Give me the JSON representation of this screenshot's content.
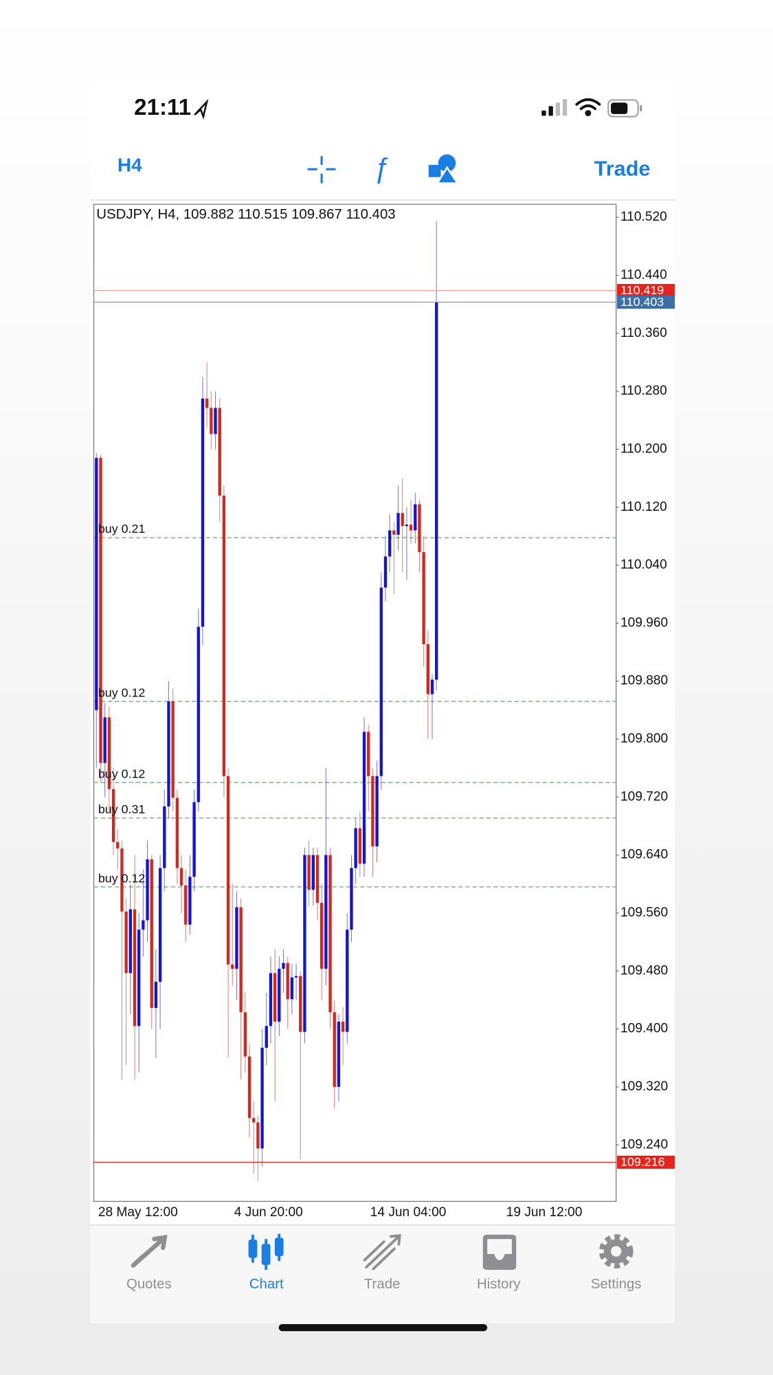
{
  "status_bar": {
    "time": "21:11"
  },
  "toolbar": {
    "timeframe": "H4",
    "trade_button": "Trade"
  },
  "chart_data": {
    "type": "candlestick",
    "title": "USDJPY, H4, 109.882 110.515 109.867 110.403",
    "ylim": [
      109.162,
      110.538
    ],
    "yticks": [
      {
        "value": 110.52,
        "label": "110.520"
      },
      {
        "value": 110.44,
        "label": "110.440"
      },
      {
        "value": 110.36,
        "label": "110.360"
      },
      {
        "value": 110.28,
        "label": "110.280"
      },
      {
        "value": 110.2,
        "label": "110.200"
      },
      {
        "value": 110.12,
        "label": "110.120"
      },
      {
        "value": 110.04,
        "label": "110.040"
      },
      {
        "value": 109.96,
        "label": "109.960"
      },
      {
        "value": 109.88,
        "label": "109.880"
      },
      {
        "value": 109.8,
        "label": "109.800"
      },
      {
        "value": 109.72,
        "label": "109.720"
      },
      {
        "value": 109.64,
        "label": "109.640"
      },
      {
        "value": 109.56,
        "label": "109.560"
      },
      {
        "value": 109.48,
        "label": "109.480"
      },
      {
        "value": 109.4,
        "label": "109.400"
      },
      {
        "value": 109.32,
        "label": "109.320"
      },
      {
        "value": 109.24,
        "label": "109.240"
      }
    ],
    "x_labels": [
      "28 May 12:00",
      "4 Jun 20:00",
      "14 Jun 04:00",
      "19 Jun 12:00"
    ],
    "up_color": "#1414d6",
    "down_color": "#d4281e",
    "open": [
      109.84,
      110.188,
      109.767,
      109.83,
      109.731,
      109.658,
      109.649,
      109.562,
      109.477,
      109.565,
      109.404,
      109.537,
      109.55,
      109.634,
      109.429,
      109.465,
      109.622,
      109.707,
      109.852,
      109.719,
      109.622,
      109.598,
      109.544,
      109.61,
      109.713,
      109.955,
      110.27,
      110.257,
      110.221,
      110.257,
      110.136,
      109.749,
      109.489,
      109.483,
      109.568,
      109.423,
      109.362,
      109.277,
      109.271,
      109.235,
      109.374,
      109.404,
      109.477,
      109.41,
      109.483,
      109.491,
      109.441,
      109.471,
      109.473,
      109.396,
      109.64,
      109.592,
      109.64,
      109.574,
      109.483,
      109.64,
      109.423,
      109.32,
      109.41,
      109.396,
      109.537,
      109.622,
      109.677,
      109.628,
      109.81,
      109.749,
      109.652,
      109.749,
      110.009,
      110.052,
      110.088,
      110.082,
      110.112,
      110.094,
      110.096,
      110.088,
      110.124,
      110.058,
      109.931,
      109.862,
      109.882
    ],
    "high": [
      110.195,
      110.192,
      109.85,
      109.845,
      109.76,
      109.675,
      109.66,
      109.58,
      109.6,
      109.64,
      109.56,
      109.62,
      109.66,
      109.64,
      109.51,
      109.64,
      109.73,
      109.88,
      109.87,
      109.73,
      109.64,
      109.62,
      109.64,
      109.73,
      109.98,
      110.3,
      110.32,
      110.28,
      110.28,
      110.27,
      110.15,
      109.76,
      109.6,
      109.59,
      109.58,
      109.45,
      109.38,
      109.3,
      109.28,
      109.4,
      109.45,
      109.5,
      109.51,
      109.5,
      109.51,
      109.5,
      109.49,
      109.49,
      109.48,
      109.65,
      109.66,
      109.65,
      109.65,
      109.6,
      109.76,
      109.65,
      109.44,
      109.42,
      109.43,
      109.56,
      109.64,
      109.69,
      109.7,
      109.83,
      109.82,
      109.76,
      109.77,
      110.03,
      110.08,
      110.11,
      110.1,
      110.15,
      110.16,
      110.12,
      110.13,
      110.14,
      110.13,
      110.08,
      109.95,
      109.89,
      110.515
    ],
    "low": [
      109.76,
      109.74,
      109.72,
      109.7,
      109.64,
      109.62,
      109.33,
      109.35,
      109.42,
      109.33,
      109.34,
      109.5,
      109.52,
      109.4,
      109.36,
      109.4,
      109.59,
      109.69,
      109.7,
      109.6,
      109.56,
      109.52,
      109.53,
      109.59,
      109.7,
      109.93,
      110.23,
      110.2,
      110.2,
      110.1,
      109.72,
      109.36,
      109.46,
      109.44,
      109.33,
      109.34,
      109.25,
      109.2,
      109.19,
      109.21,
      109.35,
      109.38,
      109.3,
      109.39,
      109.45,
      109.4,
      109.42,
      109.44,
      109.22,
      109.38,
      109.57,
      109.57,
      109.55,
      109.44,
      109.46,
      109.4,
      109.29,
      109.3,
      109.35,
      109.38,
      109.52,
      109.6,
      109.61,
      109.61,
      109.7,
      109.61,
      109.63,
      109.73,
      109.99,
      110.03,
      110.0,
      110.06,
      110.03,
      110.02,
      110.07,
      110.07,
      110.03,
      109.9,
      109.8,
      109.8,
      109.867
    ],
    "close": [
      110.188,
      109.767,
      109.83,
      109.731,
      109.658,
      109.649,
      109.562,
      109.477,
      109.565,
      109.404,
      109.537,
      109.55,
      109.634,
      109.429,
      109.465,
      109.622,
      109.707,
      109.852,
      109.719,
      109.622,
      109.598,
      109.544,
      109.61,
      109.713,
      109.955,
      110.27,
      110.257,
      110.221,
      110.257,
      110.136,
      109.749,
      109.489,
      109.483,
      109.568,
      109.423,
      109.362,
      109.277,
      109.271,
      109.235,
      109.374,
      109.404,
      109.477,
      109.41,
      109.483,
      109.491,
      109.441,
      109.471,
      109.473,
      109.396,
      109.64,
      109.592,
      109.64,
      109.574,
      109.483,
      109.64,
      109.423,
      109.32,
      109.41,
      109.396,
      109.537,
      109.622,
      109.677,
      109.628,
      109.81,
      109.749,
      109.652,
      109.749,
      110.009,
      110.052,
      110.088,
      110.082,
      110.112,
      110.094,
      110.096,
      110.088,
      110.124,
      110.058,
      109.931,
      109.862,
      109.882,
      110.403
    ],
    "price_lines": [
      {
        "value": 110.419,
        "color": "#e8231c",
        "line_color": "#f0a09a"
      },
      {
        "value": 110.403,
        "color": "#3c6ea8",
        "line_color": "#8a9aa8"
      },
      {
        "value": 109.216,
        "color": "#e8231c",
        "line_color": "#e8231c"
      }
    ],
    "orders": [
      {
        "label": "buy 0.21",
        "price": 110.078
      },
      {
        "label": "buy 0.12",
        "price": 109.852
      },
      {
        "label": "buy 0.12",
        "price": 109.74
      },
      {
        "label": "buy 0.31",
        "price": 109.691
      },
      {
        "label": "buy 0.12",
        "price": 109.596
      }
    ],
    "order_color": "#6aa86a"
  },
  "tabs": [
    {
      "label": "Quotes",
      "active": false
    },
    {
      "label": "Chart",
      "active": true
    },
    {
      "label": "Trade",
      "active": false
    },
    {
      "label": "History",
      "active": false
    },
    {
      "label": "Settings",
      "active": false
    }
  ],
  "accent_color": "#1a7fe0",
  "inactive_color": "#8e8e93"
}
